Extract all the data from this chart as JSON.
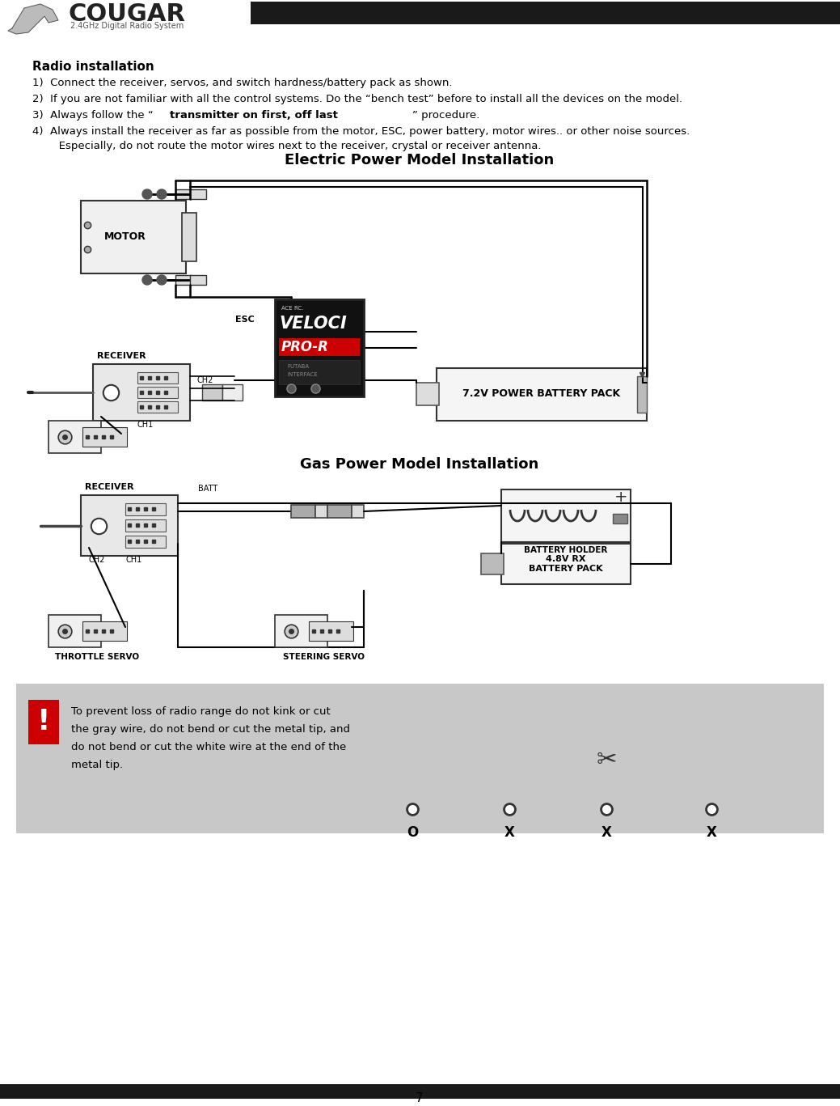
{
  "page_number": "7",
  "bg_color": "#ffffff",
  "header_bar_color": "#1a1a1a",
  "footer_bar_color": "#1a1a1a",
  "brand_name": "COUGAR",
  "brand_subtitle": "2.4GHz Digital Radio System",
  "section_title": "Radio installation",
  "electric_title": "Electric Power Model Installation",
  "gas_title": "Gas Power Model Installation",
  "warning_bg": "#c8c8c8",
  "warning_text_line1": "To prevent loss of radio range do not kink or cut",
  "warning_text_line2": "the gray wire, do not bend or cut the metal tip, and",
  "warning_text_line3": "do not bend or cut the white wire at the end of the",
  "warning_text_line4": "metal tip.",
  "font_color": "#000000",
  "gray": "#888888",
  "light_gray": "#cccccc",
  "dark_gray": "#444444"
}
